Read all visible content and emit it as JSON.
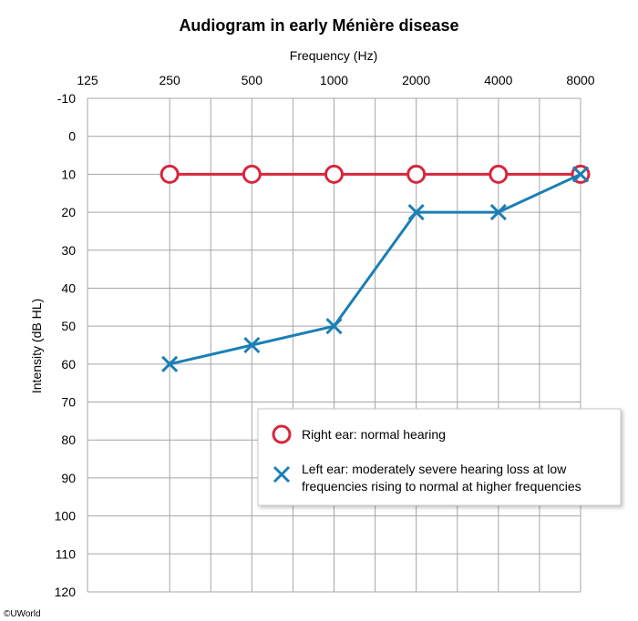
{
  "chart_data": {
    "type": "line",
    "title": "Audiogram in early Ménière disease",
    "xlabel": "Frequency (Hz)",
    "ylabel": "Intensity (dB HL)",
    "x_scale": "log2",
    "x_axis_position": "top",
    "y_inverted": true,
    "categories": [
      125,
      250,
      500,
      1000,
      2000,
      4000,
      8000
    ],
    "x_tick_labels": [
      "125",
      "250",
      "500",
      "1000",
      "2000",
      "4000",
      "8000"
    ],
    "ylim": [
      -10,
      120
    ],
    "y_ticks": [
      -10,
      0,
      10,
      20,
      30,
      40,
      50,
      60,
      70,
      80,
      90,
      100,
      110,
      120
    ],
    "grid": true,
    "legend_position": "lower-right",
    "series": [
      {
        "name": "Right ear: normal hearing",
        "marker": "circle",
        "color": "#d7263d",
        "points": [
          {
            "x": 250,
            "y": 10
          },
          {
            "x": 500,
            "y": 10
          },
          {
            "x": 1000,
            "y": 10
          },
          {
            "x": 2000,
            "y": 10
          },
          {
            "x": 4000,
            "y": 10
          },
          {
            "x": 8000,
            "y": 10
          }
        ]
      },
      {
        "name": "Left ear: moderately severe hearing loss at low frequencies rising to normal at higher frequencies",
        "legend_lines": [
          "Left ear: moderately severe hearing loss at low",
          "frequencies rising to normal at higher frequencies"
        ],
        "marker": "x",
        "color": "#1a7fb5",
        "points": [
          {
            "x": 250,
            "y": 60
          },
          {
            "x": 500,
            "y": 55
          },
          {
            "x": 1000,
            "y": 50
          },
          {
            "x": 2000,
            "y": 20
          },
          {
            "x": 4000,
            "y": 20
          },
          {
            "x": 8000,
            "y": 10
          }
        ]
      }
    ]
  },
  "copyright": "©UWorld"
}
